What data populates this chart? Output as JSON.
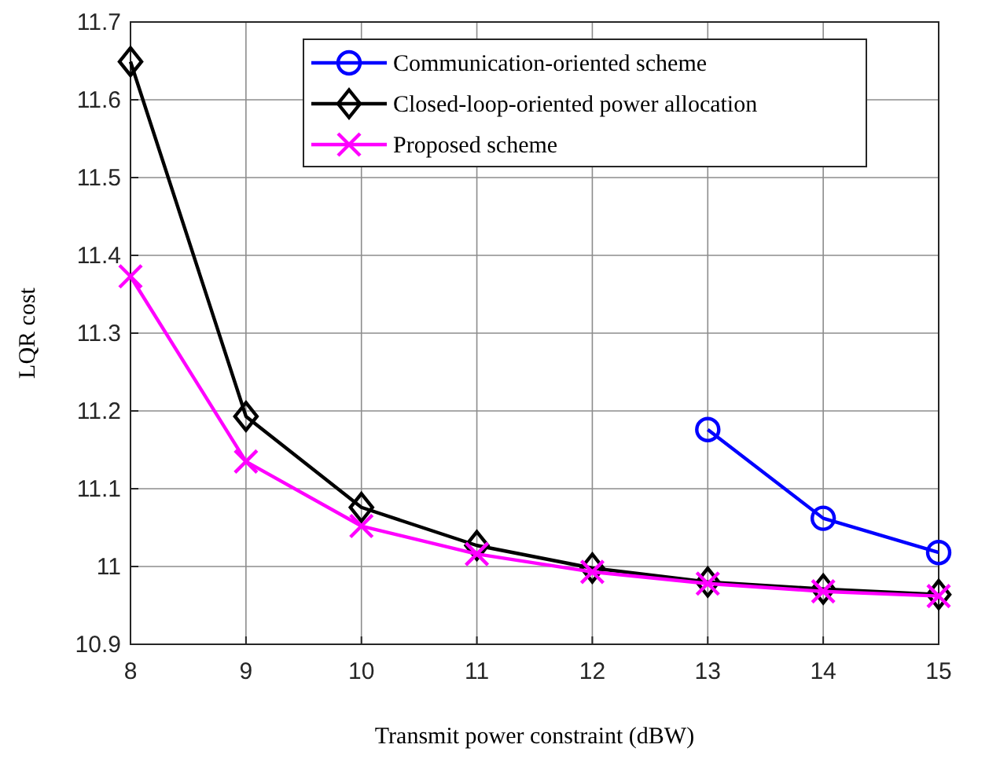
{
  "chart_data": {
    "type": "line",
    "xlabel": "Transmit power constraint (dBW)",
    "ylabel": "LQR cost",
    "xlim": [
      8,
      15
    ],
    "xticks": [
      8,
      9,
      10,
      11,
      12,
      13,
      14,
      15
    ],
    "ylim": [
      10.9,
      11.7
    ],
    "yticks": [
      10.9,
      11,
      11.1,
      11.2,
      11.3,
      11.4,
      11.5,
      11.6,
      11.7
    ],
    "grid": true,
    "legend": "top right",
    "line_style": "solid",
    "series": [
      {
        "name": "Communication-oriented scheme",
        "color": "#0000ff",
        "marker": "circle",
        "x": [
          13,
          14,
          15
        ],
        "values": [
          11.176,
          11.062,
          11.018
        ]
      },
      {
        "name": "Closed-loop-oriented power allocation",
        "color": "#000000",
        "marker": "diamond",
        "x": [
          8,
          9,
          10,
          11,
          12,
          13,
          14,
          15
        ],
        "values": [
          11.649,
          11.193,
          11.076,
          11.027,
          10.998,
          10.98,
          10.971,
          10.964
        ]
      },
      {
        "name": "Proposed scheme",
        "color": "#ff00ff",
        "marker": "cross",
        "x": [
          8,
          9,
          10,
          11,
          12,
          13,
          14,
          15
        ],
        "values": [
          11.373,
          11.135,
          11.052,
          11.016,
          10.993,
          10.978,
          10.968,
          10.962
        ]
      }
    ]
  }
}
